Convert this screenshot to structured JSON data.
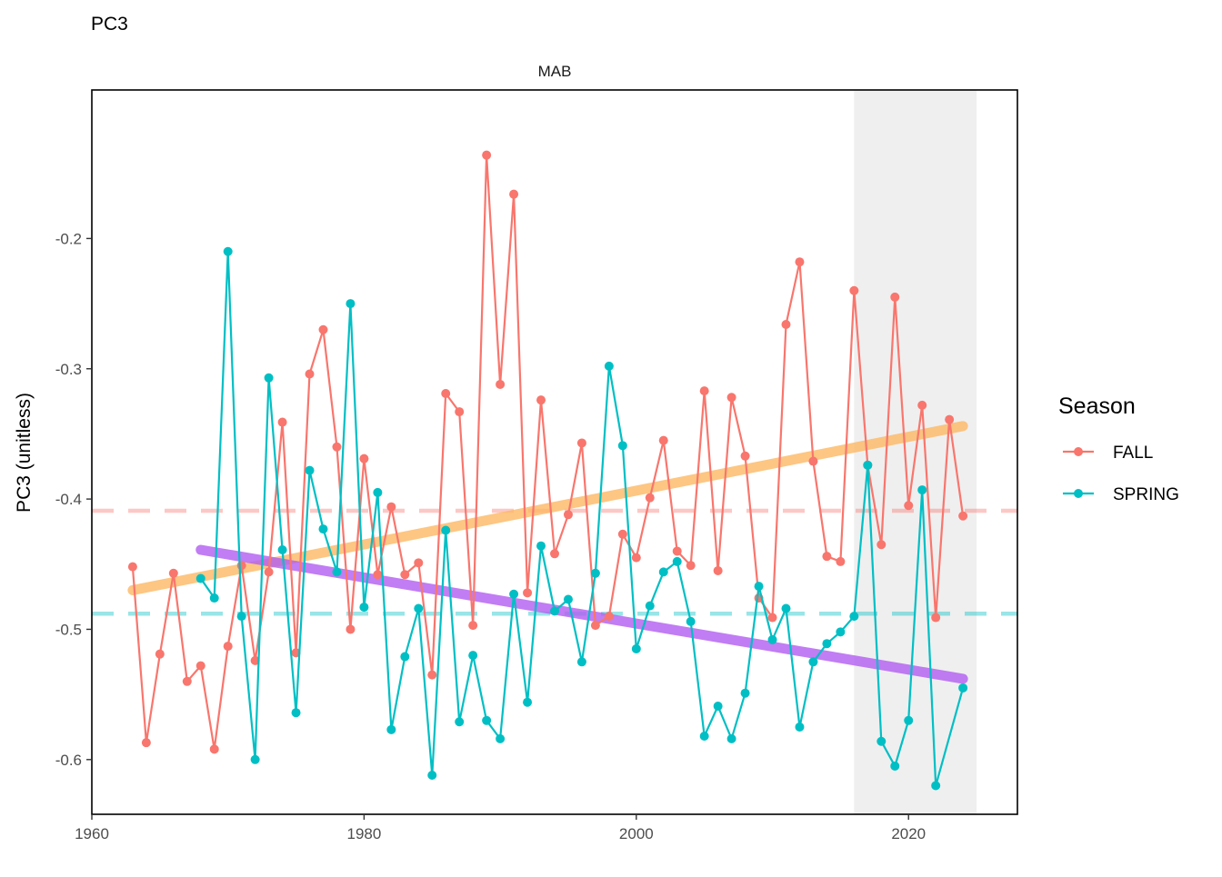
{
  "chart_data": {
    "type": "line",
    "title": "PC3",
    "facet": "MAB",
    "xlabel": "",
    "ylabel": "PC3 (unitless)",
    "xlim": [
      1960,
      2028
    ],
    "ylim": [
      -0.642,
      -0.086
    ],
    "x_ticks": [
      1960,
      1980,
      2000,
      2020
    ],
    "y_ticks": [
      -0.2,
      -0.3,
      -0.4,
      -0.5,
      -0.6
    ],
    "y_tick_labels": [
      "-0.2",
      "-0.3",
      "-0.4",
      "-0.5",
      "-0.6"
    ],
    "grid": false,
    "legend": {
      "title": "Season",
      "position": "right"
    },
    "highlight_region": {
      "x0": 2016,
      "x1": 2025,
      "color": "#efefef"
    },
    "series": [
      {
        "name": "FALL",
        "color": "#F8766D",
        "mean": -0.409,
        "trend": {
          "x": [
            1963,
            2024
          ],
          "y": [
            -0.47,
            -0.344
          ],
          "color": "#FDB863"
        },
        "x": [
          1963,
          1964,
          1965,
          1966,
          1967,
          1968,
          1969,
          1970,
          1971,
          1972,
          1973,
          1974,
          1975,
          1976,
          1977,
          1978,
          1979,
          1980,
          1981,
          1982,
          1983,
          1984,
          1985,
          1986,
          1987,
          1988,
          1989,
          1990,
          1991,
          1992,
          1993,
          1994,
          1995,
          1996,
          1997,
          1998,
          1999,
          2000,
          2001,
          2002,
          2003,
          2004,
          2005,
          2006,
          2007,
          2008,
          2009,
          2010,
          2011,
          2012,
          2013,
          2014,
          2015,
          2016,
          2017,
          2018,
          2019,
          2020,
          2021,
          2022,
          2023,
          2024
        ],
        "y": [
          -0.452,
          -0.587,
          -0.519,
          -0.457,
          -0.54,
          -0.528,
          -0.592,
          -0.513,
          -0.451,
          -0.524,
          -0.456,
          -0.341,
          -0.518,
          -0.304,
          -0.27,
          -0.36,
          -0.5,
          -0.369,
          -0.458,
          -0.406,
          -0.458,
          -0.449,
          -0.535,
          -0.319,
          -0.333,
          -0.497,
          -0.136,
          -0.312,
          -0.166,
          -0.472,
          -0.324,
          -0.442,
          -0.412,
          -0.357,
          -0.497,
          -0.49,
          -0.427,
          -0.445,
          -0.399,
          -0.355,
          -0.44,
          -0.451,
          -0.317,
          -0.455,
          -0.322,
          -0.367,
          -0.476,
          -0.491,
          -0.266,
          -0.218,
          -0.371,
          -0.444,
          -0.448,
          -0.24,
          -0.374,
          -0.435,
          -0.245,
          -0.405,
          -0.328,
          -0.491,
          -0.339,
          -0.413
        ]
      },
      {
        "name": "SPRING",
        "color": "#00BFC4",
        "mean": -0.488,
        "trend": {
          "x": [
            1968,
            2024
          ],
          "y": [
            -0.439,
            -0.538
          ],
          "color": "#B15CF0"
        },
        "x": [
          1968,
          1969,
          1970,
          1971,
          1972,
          1973,
          1974,
          1975,
          1976,
          1977,
          1978,
          1979,
          1980,
          1981,
          1982,
          1983,
          1984,
          1985,
          1986,
          1987,
          1988,
          1989,
          1990,
          1991,
          1992,
          1993,
          1994,
          1995,
          1996,
          1997,
          1998,
          1999,
          2000,
          2001,
          2002,
          2003,
          2004,
          2005,
          2006,
          2007,
          2008,
          2009,
          2010,
          2011,
          2012,
          2013,
          2014,
          2015,
          2016,
          2017,
          2018,
          2019,
          2020,
          2021,
          2022,
          2024
        ],
        "y": [
          -0.461,
          -0.476,
          -0.21,
          -0.49,
          -0.6,
          -0.307,
          -0.439,
          -0.564,
          -0.378,
          -0.423,
          -0.456,
          -0.25,
          -0.483,
          -0.395,
          -0.577,
          -0.521,
          -0.484,
          -0.612,
          -0.424,
          -0.571,
          -0.52,
          -0.57,
          -0.584,
          -0.473,
          -0.556,
          -0.436,
          -0.486,
          -0.477,
          -0.525,
          -0.457,
          -0.298,
          -0.359,
          -0.515,
          -0.482,
          -0.456,
          -0.448,
          -0.494,
          -0.582,
          -0.559,
          -0.584,
          -0.549,
          -0.467,
          -0.508,
          -0.484,
          -0.575,
          -0.525,
          -0.511,
          -0.502,
          -0.49,
          -0.374,
          -0.586,
          -0.605,
          -0.57,
          -0.393,
          -0.62,
          -0.545
        ]
      }
    ]
  }
}
